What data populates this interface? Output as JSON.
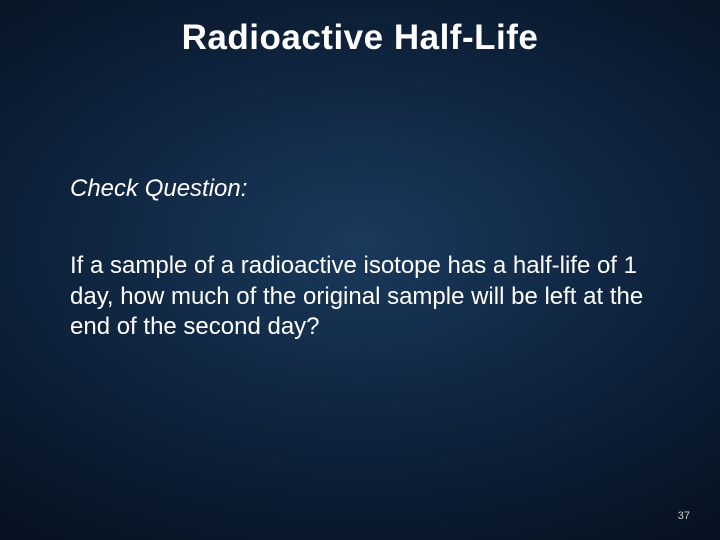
{
  "slide": {
    "title": "Radioactive Half-Life",
    "subheading": "Check Question:",
    "body": "If a sample of a radioactive isotope has a half-life of 1 day, how much of the original sample will be left at the end of the second day?",
    "page_number": "37"
  },
  "style": {
    "background_gradient_center": "#1a3a5c",
    "background_gradient_mid": "#0f2540",
    "background_gradient_outer": "#020812",
    "text_color": "#ffffff",
    "title_fontsize": 35,
    "subheading_fontsize": 24,
    "body_fontsize": 24,
    "page_number_fontsize": 11,
    "font_family": "Arial"
  }
}
